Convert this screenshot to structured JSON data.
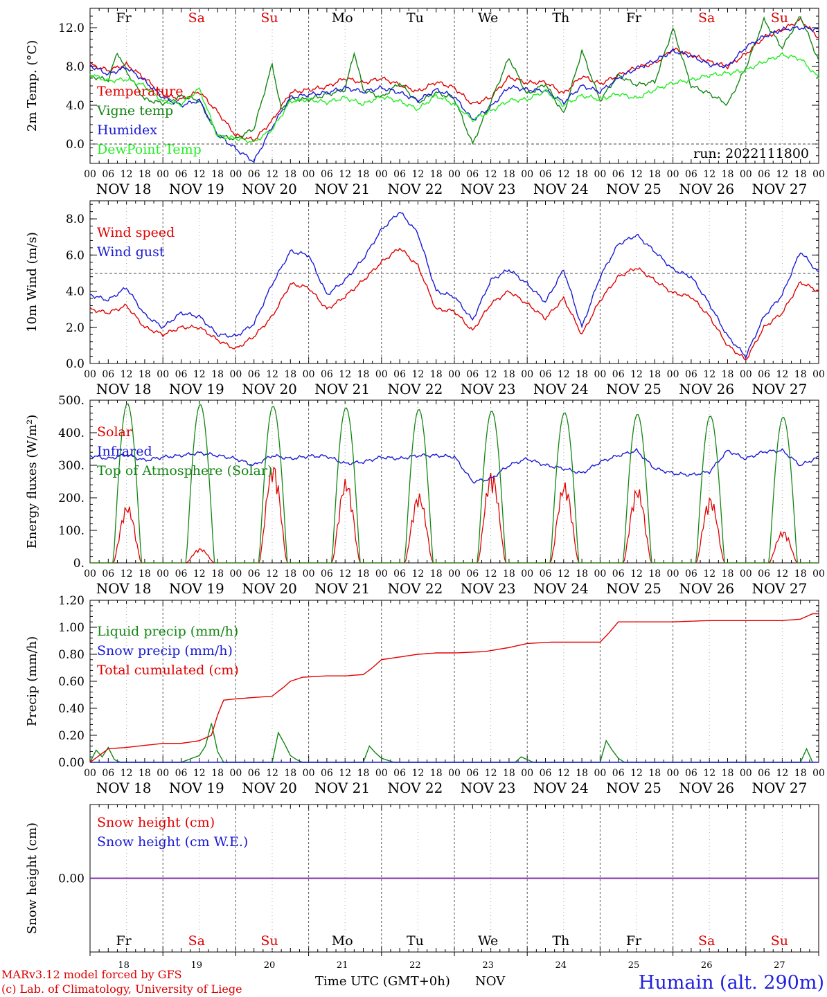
{
  "footer": {
    "credit_1": "MARv3.12 model forced by GFS",
    "credit_2": "(c) Lab. of Climatology, University of Liege",
    "time_axis_label": "Time UTC (GMT+0h)",
    "month_label": "NOV",
    "station": "Humain (alt. 290m)",
    "day_numbers": [
      "18",
      "19",
      "20",
      "21",
      "22",
      "23",
      "24",
      "25",
      "26",
      "27"
    ]
  },
  "weekdays": [
    "Fr",
    "Sa",
    "Su",
    "Mo",
    "Tu",
    "We",
    "Th",
    "Fr",
    "Sa",
    "Su"
  ],
  "weekday_colors": [
    "#000000",
    "#dd0000",
    "#dd0000",
    "#000000",
    "#000000",
    "#000000",
    "#000000",
    "#000000",
    "#dd0000",
    "#dd0000"
  ],
  "hour_ticks": [
    "00",
    "06",
    "12",
    "18"
  ],
  "date_labels": [
    "NOV 18",
    "NOV 19",
    "NOV 20",
    "NOV 21",
    "NOV 22",
    "NOV 23",
    "NOV 24",
    "NOV 25",
    "NOV 26",
    "NOV 27"
  ],
  "run_label": "run: 2022111800",
  "chart_data": [
    {
      "type": "line",
      "ylabel": "2m Temp. (°C)",
      "ylim": [
        -2.0,
        14.0
      ],
      "yticks": [
        "0.0",
        "4.0",
        "8.0",
        "12.0"
      ],
      "reference_line": 0.0,
      "x_unit": "hours since 2022-11-18 00 UTC",
      "series": [
        {
          "name": "Temperature",
          "color": "#e00000",
          "x": [
            0,
            6,
            12,
            18,
            24,
            30,
            36,
            42,
            48,
            54,
            60,
            66,
            72,
            78,
            84,
            90,
            96,
            102,
            108,
            114,
            120,
            126,
            132,
            138,
            144,
            150,
            156,
            162,
            168,
            174,
            180,
            186,
            192,
            198,
            204,
            210,
            216,
            222,
            228,
            234,
            240
          ],
          "y": [
            8.2,
            7.6,
            8.2,
            6.8,
            5.1,
            4.6,
            5.4,
            3.3,
            0.9,
            0.4,
            2.4,
            5.3,
            5.6,
            5.9,
            6.8,
            6.3,
            6.8,
            6.1,
            5.4,
            6.4,
            5.8,
            4.1,
            4.8,
            6.9,
            6.3,
            6.4,
            5.2,
            7.0,
            6.2,
            7.1,
            7.9,
            8.3,
            9.8,
            9.2,
            8.5,
            8.0,
            9.3,
            11.0,
            11.8,
            12.8,
            11.0
          ]
        },
        {
          "name": "Vigne temp",
          "color": "#138613",
          "x": [
            0,
            6,
            9,
            12,
            18,
            24,
            30,
            36,
            42,
            48,
            54,
            60,
            63,
            66,
            72,
            84,
            87,
            90,
            96,
            102,
            108,
            114,
            120,
            126,
            132,
            138,
            144,
            150,
            156,
            162,
            168,
            174,
            180,
            186,
            192,
            198,
            204,
            210,
            216,
            222,
            228,
            234,
            240
          ],
          "y": [
            7.0,
            6.6,
            9.5,
            7.5,
            4.6,
            4.2,
            4.9,
            4.5,
            0.9,
            0.5,
            1.6,
            8.2,
            3.5,
            4.6,
            4.6,
            5.6,
            9.5,
            5.6,
            4.8,
            6.3,
            4.3,
            5.3,
            4.7,
            0.0,
            4.4,
            8.9,
            5.1,
            6.2,
            3.1,
            9.6,
            4.5,
            7.1,
            6.1,
            6.4,
            11.9,
            6.0,
            5.2,
            4.1,
            7.9,
            12.8,
            9.9,
            13.2,
            8.6
          ]
        },
        {
          "name": "Humidex",
          "color": "#1a1ad4",
          "x": [
            0,
            6,
            12,
            18,
            24,
            30,
            36,
            42,
            48,
            54,
            60,
            66,
            72,
            78,
            84,
            90,
            96,
            102,
            108,
            114,
            120,
            126,
            132,
            138,
            144,
            150,
            156,
            162,
            168,
            174,
            180,
            186,
            192,
            198,
            204,
            210,
            216,
            222,
            228,
            234,
            240
          ],
          "y": [
            8.1,
            7.2,
            7.9,
            6.5,
            4.8,
            4.0,
            4.5,
            1.0,
            -0.5,
            -1.8,
            1.8,
            4.8,
            5.1,
            5.3,
            5.8,
            5.4,
            5.8,
            5.3,
            4.5,
            5.6,
            4.9,
            2.5,
            3.8,
            5.9,
            5.6,
            5.5,
            4.3,
            6.0,
            5.4,
            6.8,
            7.8,
            8.6,
            9.6,
            9.1,
            8.2,
            8.0,
            10.0,
            11.1,
            11.8,
            12.0,
            11.8
          ]
        },
        {
          "name": "DewPoint Temp",
          "color": "#22ee22",
          "x": [
            0,
            6,
            12,
            18,
            24,
            30,
            36,
            42,
            48,
            54,
            60,
            66,
            72,
            78,
            84,
            90,
            96,
            102,
            108,
            114,
            120,
            126,
            132,
            138,
            144,
            150,
            156,
            162,
            168,
            174,
            180,
            186,
            192,
            198,
            204,
            210,
            216,
            222,
            228,
            234,
            240
          ],
          "y": [
            7.2,
            6.5,
            6.7,
            6.0,
            4.4,
            4.1,
            5.7,
            0.8,
            0.6,
            0.2,
            1.5,
            4.4,
            4.6,
            4.3,
            4.8,
            4.1,
            4.9,
            4.4,
            3.6,
            5.0,
            4.1,
            2.5,
            3.4,
            4.5,
            4.6,
            5.5,
            4.0,
            5.0,
            4.6,
            5.2,
            4.7,
            5.6,
            6.3,
            6.6,
            7.1,
            7.3,
            7.6,
            8.5,
            9.2,
            8.8,
            6.8
          ]
        }
      ]
    },
    {
      "type": "line",
      "ylabel": "10m Wind (m/s)",
      "ylim": [
        0.0,
        9.0
      ],
      "yticks": [
        "0.0",
        "2.0",
        "4.0",
        "6.0",
        "8.0"
      ],
      "reference_line": 5.0,
      "x_unit": "hours since 2022-11-18 00 UTC",
      "series": [
        {
          "name": "Wind speed",
          "color": "#e00000",
          "x": [
            0,
            6,
            12,
            18,
            24,
            30,
            36,
            42,
            48,
            54,
            60,
            66,
            72,
            78,
            84,
            90,
            96,
            102,
            108,
            114,
            120,
            126,
            132,
            138,
            144,
            150,
            156,
            162,
            168,
            174,
            180,
            186,
            192,
            198,
            204,
            210,
            216,
            222,
            228,
            234,
            240
          ],
          "y": [
            3.0,
            2.8,
            3.2,
            2.0,
            1.6,
            2.0,
            2.0,
            1.3,
            0.8,
            1.5,
            2.6,
            4.4,
            4.2,
            3.0,
            3.7,
            4.6,
            5.6,
            6.4,
            5.4,
            3.0,
            2.9,
            1.8,
            3.3,
            4.0,
            3.3,
            2.5,
            3.6,
            1.6,
            3.5,
            4.8,
            5.3,
            4.6,
            3.9,
            3.7,
            2.6,
            1.0,
            0.2,
            2.0,
            2.8,
            4.5,
            4.0
          ]
        },
        {
          "name": "Wind gust",
          "color": "#1a1ad4",
          "x": [
            0,
            6,
            12,
            18,
            24,
            30,
            36,
            42,
            48,
            54,
            60,
            66,
            72,
            78,
            84,
            90,
            96,
            102,
            108,
            114,
            120,
            126,
            132,
            138,
            144,
            150,
            156,
            162,
            168,
            174,
            180,
            186,
            192,
            198,
            204,
            210,
            216,
            222,
            228,
            234,
            240
          ],
          "y": [
            3.8,
            3.5,
            4.2,
            2.7,
            2.0,
            2.8,
            2.6,
            1.6,
            1.5,
            2.2,
            4.4,
            6.2,
            6.0,
            3.8,
            4.6,
            5.8,
            7.4,
            8.4,
            7.2,
            4.0,
            3.7,
            2.4,
            4.6,
            5.2,
            4.4,
            3.4,
            5.2,
            2.0,
            4.8,
            6.6,
            7.1,
            6.2,
            5.2,
            4.8,
            3.3,
            1.5,
            0.4,
            2.6,
            3.8,
            6.2,
            5.0
          ]
        }
      ]
    },
    {
      "type": "line",
      "ylabel": "Energy fluxes (W/m²)",
      "ylim": [
        0,
        500
      ],
      "yticks": [
        "0.",
        "100.",
        "200.",
        "300.",
        "400.",
        "500."
      ],
      "x_unit": "hours since 2022-11-18 00 UTC",
      "series": [
        {
          "name": "Solar",
          "color": "#e00000",
          "daily_peak": [
            180,
            45,
            310,
            260,
            215,
            285,
            250,
            235,
            205,
            100
          ]
        },
        {
          "name": "Infrared",
          "color": "#1a1ad4",
          "x": [
            0,
            6,
            12,
            18,
            24,
            30,
            36,
            42,
            48,
            54,
            60,
            66,
            72,
            78,
            84,
            90,
            96,
            102,
            108,
            114,
            120,
            126,
            132,
            138,
            144,
            150,
            156,
            162,
            168,
            174,
            180,
            186,
            192,
            198,
            204,
            210,
            216,
            222,
            228,
            234,
            240
          ],
          "y": [
            330,
            320,
            332,
            315,
            325,
            330,
            338,
            330,
            320,
            300,
            330,
            320,
            328,
            328,
            305,
            310,
            325,
            320,
            330,
            330,
            326,
            250,
            258,
            300,
            320,
            300,
            290,
            275,
            310,
            330,
            345,
            290,
            275,
            270,
            280,
            345,
            320,
            342,
            345,
            300,
            325
          ]
        },
        {
          "name": "Top of Atmosphere (Solar)",
          "color": "#138613",
          "daily_peak": [
            490,
            487,
            482,
            477,
            472,
            467,
            462,
            457,
            452,
            448
          ]
        }
      ]
    },
    {
      "type": "line",
      "ylabel": "Precip (mm/h)",
      "ylim": [
        0.0,
        1.2
      ],
      "yticks": [
        "0.00",
        "0.20",
        "0.40",
        "0.60",
        "0.80",
        "1.00",
        "1.20"
      ],
      "x_unit": "hours since 2022-11-18 00 UTC",
      "series": [
        {
          "name": "Liquid precip (mm/h)",
          "color": "#138613",
          "x": [
            0,
            2,
            4,
            6,
            8,
            10,
            30,
            36,
            38,
            40,
            42,
            44,
            48,
            60,
            62,
            64,
            66,
            68,
            70,
            72,
            84,
            90,
            92,
            94,
            96,
            100,
            140,
            142,
            144,
            146,
            168,
            170,
            172,
            174,
            176,
            216,
            234,
            236,
            238
          ],
          "y": [
            0.0,
            0.09,
            0.04,
            0.11,
            0.02,
            0.0,
            0.0,
            0.05,
            0.12,
            0.29,
            0.08,
            0.0,
            0.0,
            0.0,
            0.22,
            0.14,
            0.05,
            0.02,
            0.0,
            0.0,
            0.0,
            0.0,
            0.12,
            0.07,
            0.03,
            0.0,
            0.0,
            0.04,
            0.02,
            0.0,
            0.0,
            0.16,
            0.09,
            0.03,
            0.0,
            0.0,
            0.0,
            0.1,
            0.0
          ]
        },
        {
          "name": "Snow precip (mm/h)",
          "color": "#1a1ad4",
          "x": [
            0,
            240
          ],
          "y": [
            0.0,
            0.0
          ]
        },
        {
          "name": "Total cumulated (cm)",
          "color": "#e00000",
          "x": [
            0,
            6,
            12,
            24,
            30,
            36,
            40,
            42,
            44,
            48,
            54,
            60,
            64,
            66,
            70,
            78,
            84,
            90,
            93,
            96,
            102,
            108,
            114,
            120,
            130,
            138,
            144,
            152,
            168,
            171,
            174,
            180,
            192,
            204,
            216,
            228,
            234,
            238,
            240
          ],
          "y": [
            0.0,
            0.1,
            0.11,
            0.14,
            0.14,
            0.16,
            0.2,
            0.35,
            0.46,
            0.47,
            0.48,
            0.49,
            0.56,
            0.6,
            0.63,
            0.64,
            0.64,
            0.65,
            0.7,
            0.76,
            0.78,
            0.8,
            0.81,
            0.81,
            0.82,
            0.85,
            0.88,
            0.89,
            0.89,
            0.96,
            1.04,
            1.04,
            1.04,
            1.05,
            1.05,
            1.05,
            1.06,
            1.1,
            1.1
          ]
        }
      ]
    },
    {
      "type": "line",
      "ylabel": "Snow height (cm)",
      "yticks": [
        "0.00"
      ],
      "x_unit": "hours since 2022-11-18 00 UTC",
      "series": [
        {
          "name": "Snow height (cm)",
          "color": "#e00000",
          "x": [
            0,
            240
          ],
          "y": [
            0.0,
            0.0
          ]
        },
        {
          "name": "Snow height (cm W.E.)",
          "color": "#1a1ad4",
          "x": [
            0,
            240
          ],
          "y": [
            0.0,
            0.0
          ]
        }
      ]
    }
  ]
}
